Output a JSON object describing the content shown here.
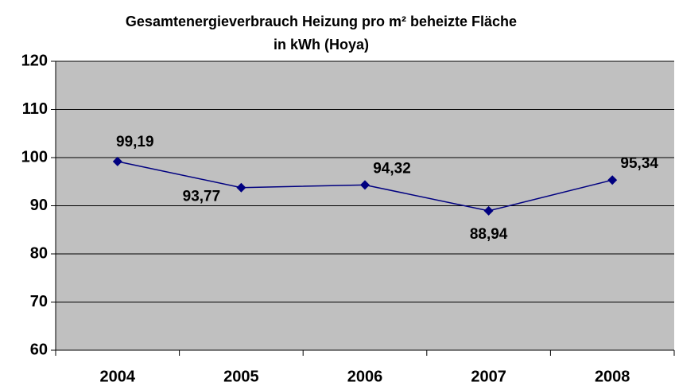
{
  "chart_data": {
    "type": "line",
    "title": [
      "Gesamtenergieverbrauch Heizung pro m² beheizte Fläche",
      "in kWh (Hoya)"
    ],
    "categories": [
      "2004",
      "2005",
      "2006",
      "2007",
      "2008"
    ],
    "values": [
      99.19,
      93.77,
      94.32,
      88.94,
      95.34
    ],
    "value_labels": [
      "99,19",
      "93,77",
      "94,32",
      "88,94",
      "95,34"
    ],
    "color": "#000080",
    "ylim": [
      60,
      120
    ],
    "yticks": [
      60,
      70,
      80,
      90,
      100,
      110,
      120
    ],
    "grid": true
  }
}
